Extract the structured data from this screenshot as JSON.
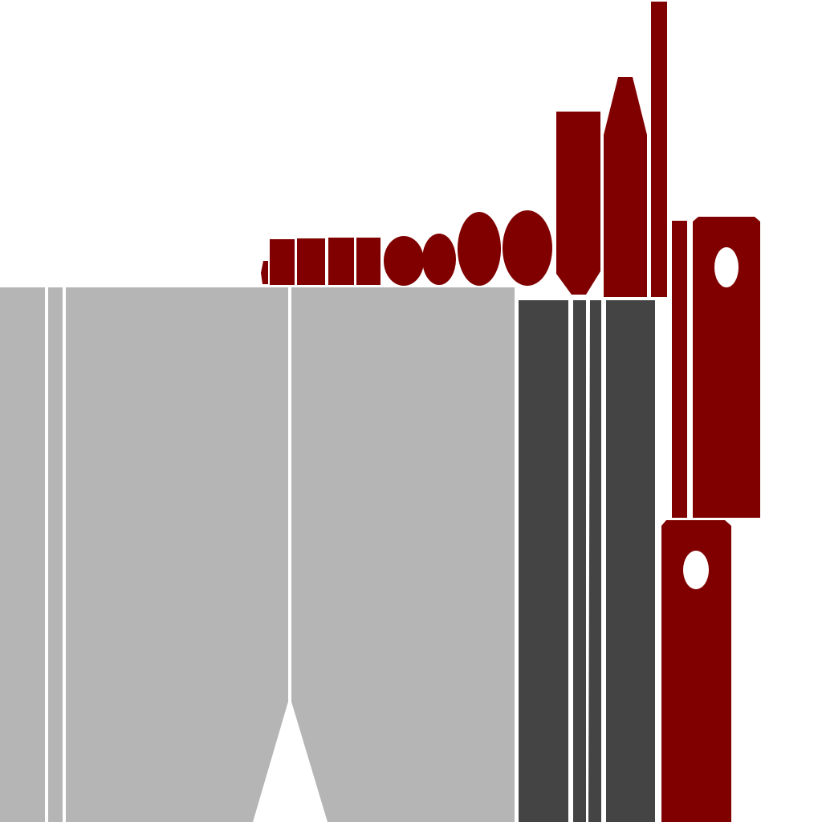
{
  "title": "",
  "colors": {
    "background": "#ffffff",
    "light_gray": "#b5b5b5",
    "dark_gray": "#444444",
    "dark_red": "#800000",
    "white": "#ffffff"
  },
  "icons": [
    "uv-layout-light-gray-panels",
    "uv-layout-dark-gray-strips",
    "uv-layout-dark-red-parts"
  ]
}
